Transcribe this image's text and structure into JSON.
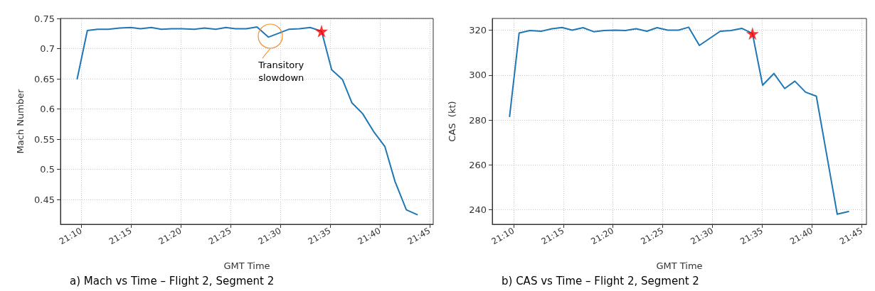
{
  "chart_data": [
    {
      "type": "line",
      "title": "a) Mach vs Time – Flight 2, Segment 2",
      "xlabel": "GMT Time",
      "ylabel": "Mach Number",
      "xlim": [
        21.132,
        21.756
      ],
      "ylim": [
        0.409,
        0.75
      ],
      "xticks": [
        {
          "value": 21.1667,
          "label": "21:10"
        },
        {
          "value": 21.25,
          "label": "21:15"
        },
        {
          "value": 21.3333,
          "label": "21:20"
        },
        {
          "value": 21.4167,
          "label": "21:25"
        },
        {
          "value": 21.5,
          "label": "21:30"
        },
        {
          "value": 21.5833,
          "label": "21:35"
        },
        {
          "value": 21.6667,
          "label": "21:40"
        },
        {
          "value": 21.75,
          "label": "21:45"
        }
      ],
      "yticks": [
        0.45,
        0.5,
        0.55,
        0.6,
        0.65,
        0.7,
        0.75
      ],
      "grid": true,
      "series": [
        {
          "color": "#1f77b4",
          "marker": "none",
          "x": [
            21.16,
            21.177,
            21.194,
            21.212,
            21.231,
            21.25,
            21.266,
            21.284,
            21.301,
            21.318,
            21.335,
            21.356,
            21.373,
            21.392,
            21.409,
            21.425,
            21.443,
            21.461,
            21.48,
            21.514,
            21.532,
            21.55,
            21.569,
            21.586,
            21.604,
            21.62,
            21.638,
            21.656,
            21.675,
            21.692,
            21.711,
            21.729
          ],
          "values": [
            0.65,
            0.73,
            0.732,
            0.732,
            0.734,
            0.735,
            0.733,
            0.735,
            0.732,
            0.733,
            0.733,
            0.732,
            0.734,
            0.732,
            0.735,
            0.733,
            0.733,
            0.736,
            0.719,
            0.732,
            0.733,
            0.735,
            0.729,
            0.665,
            0.649,
            0.61,
            0.592,
            0.563,
            0.538,
            0.48,
            0.433,
            0.425
          ]
        },
        {
          "type": "scatter",
          "color": "#ff0000",
          "marker": "star",
          "x": [
            21.569
          ],
          "values": [
            0.729
          ]
        }
      ],
      "annotations": [
        {
          "text": "Transitory slowdown",
          "x": 21.48,
          "y": 0.719
        }
      ]
    },
    {
      "type": "line",
      "title": "b) CAS vs Time – Flight 2, Segment 2",
      "xlabel": "GMT Time",
      "ylabel": "CAS  (kt)",
      "xlim": [
        21.131,
        21.758
      ],
      "ylim": [
        233.6,
        325.2
      ],
      "xticks": [
        {
          "value": 21.1667,
          "label": "21:10"
        },
        {
          "value": 21.25,
          "label": "21:15"
        },
        {
          "value": 21.3333,
          "label": "21:20"
        },
        {
          "value": 21.4167,
          "label": "21:25"
        },
        {
          "value": 21.5,
          "label": "21:30"
        },
        {
          "value": 21.5833,
          "label": "21:35"
        },
        {
          "value": 21.6667,
          "label": "21:40"
        },
        {
          "value": 21.75,
          "label": "21:45"
        }
      ],
      "yticks": [
        240,
        260,
        280,
        300,
        320
      ],
      "grid": true,
      "series": [
        {
          "color": "#1f77b4",
          "marker": "none",
          "x": [
            21.16,
            21.176,
            21.194,
            21.213,
            21.231,
            21.248,
            21.265,
            21.283,
            21.301,
            21.318,
            21.337,
            21.354,
            21.372,
            21.39,
            21.407,
            21.425,
            21.443,
            21.46,
            21.478,
            21.513,
            21.531,
            21.549,
            21.567,
            21.584,
            21.603,
            21.621,
            21.638,
            21.656,
            21.674,
            21.709,
            21.728
          ],
          "values": [
            281.6,
            318.7,
            319.8,
            319.5,
            320.6,
            321.2,
            320.0,
            321.1,
            319.3,
            319.8,
            320.0,
            319.8,
            320.6,
            319.5,
            321.1,
            320.0,
            320.0,
            321.3,
            313.2,
            319.5,
            319.8,
            320.8,
            318.5,
            295.5,
            300.7,
            294.0,
            297.3,
            292.4,
            290.6,
            238.1,
            239.3
          ]
        },
        {
          "type": "scatter",
          "color": "#ff0000",
          "marker": "star",
          "x": [
            21.567
          ],
          "values": [
            318.5
          ]
        }
      ]
    }
  ]
}
